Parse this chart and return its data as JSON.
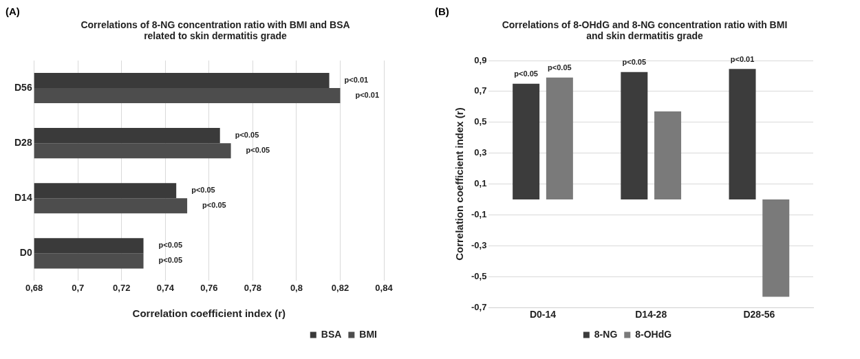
{
  "chart_data": [
    {
      "type": "bar",
      "orientation": "horizontal",
      "title": "Correlations of 8-NG concentration ratio with BMI and BSA related to skin dermatitis grade",
      "xlabel": "Correlation coefficient index (r)",
      "annotations": [
        "(A)"
      ],
      "categories": [
        "D56",
        "D28",
        "D14",
        "D0"
      ],
      "series": [
        {
          "name": "BSA",
          "color": "#3a3a3a",
          "values": [
            0.815,
            0.765,
            0.745,
            0.73
          ],
          "value_labels": [
            "p<0.01",
            "p<0.05",
            "p<0.05",
            "p<0.05"
          ]
        },
        {
          "name": "BMI",
          "color": "#4d4d4d",
          "values": [
            0.82,
            0.77,
            0.75,
            0.73
          ],
          "value_labels": [
            "p<0.01",
            "p<0.05",
            "p<0.05",
            "p<0.05"
          ]
        }
      ],
      "xlim": [
        0.68,
        0.84
      ],
      "xticks": [
        {
          "value": 0.68,
          "label": "0,68"
        },
        {
          "value": 0.7,
          "label": "0,7"
        },
        {
          "value": 0.72,
          "label": "0,72"
        },
        {
          "value": 0.74,
          "label": "0,74"
        },
        {
          "value": 0.76,
          "label": "0,76"
        },
        {
          "value": 0.78,
          "label": "0,78"
        },
        {
          "value": 0.8,
          "label": "0,8"
        },
        {
          "value": 0.82,
          "label": "0,82"
        },
        {
          "value": 0.84,
          "label": "0,84"
        }
      ],
      "grid": "x",
      "legend": "bottom right"
    },
    {
      "type": "bar",
      "title": "Correlations of 8-OHdG and 8-NG concentration ratio with BMI and skin dermatitis grade",
      "ylabel": "Correlation coefficient index (r)",
      "annotations": [
        "(B)"
      ],
      "categories": [
        "D0-14",
        "D14-28",
        "D28-56"
      ],
      "series": [
        {
          "name": "8-NG",
          "color": "#3c3c3c",
          "values": [
            0.75,
            0.825,
            0.845
          ],
          "value_labels": [
            "p<0.05",
            "p<0.05",
            "p<0.01"
          ]
        },
        {
          "name": "8-OHdG",
          "color": "#7a7a7a",
          "values": [
            0.79,
            0.57,
            -0.63
          ],
          "value_labels": [
            "p<0.05",
            null,
            null
          ]
        }
      ],
      "ylim": [
        -0.7,
        0.9
      ],
      "yticks": [
        {
          "value": -0.7,
          "label": "-0,7"
        },
        {
          "value": -0.5,
          "label": "-0,5"
        },
        {
          "value": -0.3,
          "label": "-0,3"
        },
        {
          "value": -0.1,
          "label": "-0,1"
        },
        {
          "value": 0.1,
          "label": "0,1"
        },
        {
          "value": 0.3,
          "label": "0,3"
        },
        {
          "value": 0.5,
          "label": "0,5"
        },
        {
          "value": 0.7,
          "label": "0,7"
        },
        {
          "value": 0.9,
          "label": "0,9"
        }
      ],
      "grid": "y",
      "legend": "bottom"
    }
  ]
}
